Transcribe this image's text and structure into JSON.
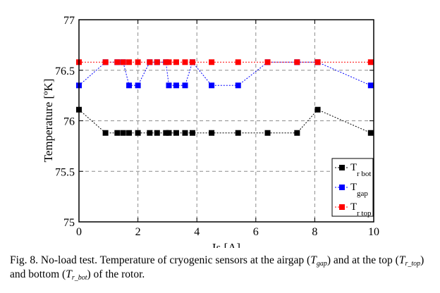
{
  "chart_data": {
    "type": "line",
    "xlabel": "Is [A]",
    "ylabel": "Temperature [ºK]",
    "xlim": [
      0,
      10
    ],
    "ylim": [
      75,
      77
    ],
    "xticks": [
      0,
      2,
      4,
      6,
      8,
      10
    ],
    "yticks": [
      75,
      75.5,
      76,
      76.5,
      77
    ],
    "x_ticklabels": [
      "0",
      "2",
      "4",
      "6",
      "8",
      "10"
    ],
    "y_ticklabels": [
      "75",
      "75.5",
      "76",
      "76.5",
      "77"
    ],
    "grid": true,
    "legend_position": "bottom-right",
    "series": [
      {
        "name": "T",
        "name_sub": "r bot",
        "color": "#000000",
        "x": [
          0,
          0.9,
          1.3,
          1.5,
          1.7,
          2.0,
          2.4,
          2.65,
          2.95,
          3.05,
          3.3,
          3.6,
          3.85,
          4.5,
          5.4,
          6.4,
          7.4,
          8.1,
          9.9
        ],
        "y": [
          76.11,
          75.88,
          75.88,
          75.88,
          75.88,
          75.88,
          75.88,
          75.88,
          75.88,
          75.88,
          75.88,
          75.88,
          75.88,
          75.88,
          75.88,
          75.88,
          75.88,
          76.11,
          75.88
        ]
      },
      {
        "name": "T",
        "name_sub": "gap",
        "color": "#0000ff",
        "x": [
          0,
          0.9,
          1.3,
          1.5,
          1.7,
          2.0,
          2.4,
          2.65,
          2.95,
          3.05,
          3.3,
          3.6,
          3.85,
          4.5,
          5.4,
          6.4,
          7.4,
          8.1,
          9.9
        ],
        "y": [
          76.35,
          76.58,
          76.58,
          76.58,
          76.35,
          76.35,
          76.58,
          76.58,
          76.58,
          76.35,
          76.35,
          76.35,
          76.58,
          76.35,
          76.35,
          76.58,
          76.58,
          76.58,
          76.35
        ]
      },
      {
        "name": "T",
        "name_sub": "r top",
        "color": "#ff0000",
        "x": [
          0,
          0.9,
          1.3,
          1.5,
          1.7,
          2.0,
          2.4,
          2.65,
          2.95,
          3.05,
          3.3,
          3.6,
          3.85,
          4.5,
          5.4,
          6.4,
          7.4,
          8.1,
          9.9
        ],
        "y": [
          76.58,
          76.58,
          76.58,
          76.58,
          76.58,
          76.58,
          76.58,
          76.58,
          76.58,
          76.58,
          76.58,
          76.58,
          76.58,
          76.58,
          76.58,
          76.58,
          76.58,
          76.58,
          76.58
        ]
      }
    ]
  },
  "caption": {
    "p1": "Fig. 8. No-load test. Temperature of cryogenic sensors at the airgap (",
    "v1": "T",
    "s1": "gap",
    "p2": ") and at the top (",
    "v2": "T",
    "s2": "r_top",
    "p3": ") and bottom (",
    "v3": "T",
    "s3": "r_bot",
    "p4": ") of the rotor."
  }
}
